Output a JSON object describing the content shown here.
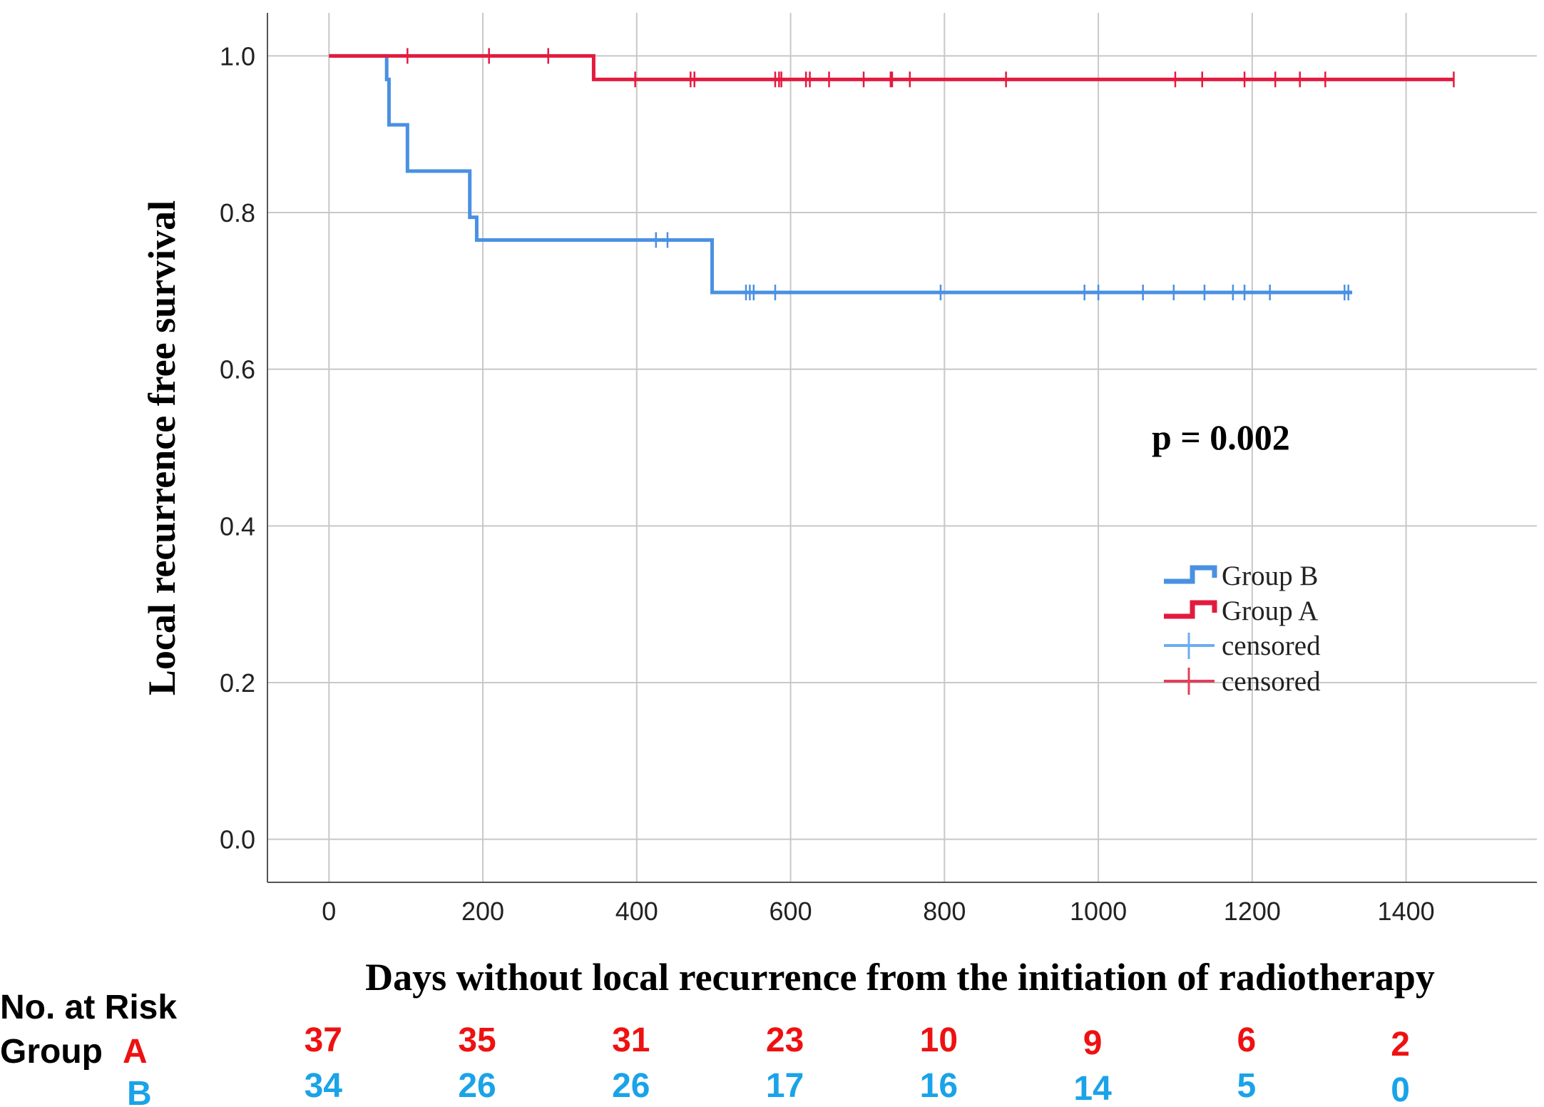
{
  "chart_data": {
    "type": "line",
    "subtype": "kaplan-meier",
    "title": "",
    "xlabel": "Days without local recurrence from the initiation of radiotherapy",
    "ylabel": "Local recurrence free survival",
    "xlim": [
      -80,
      1570
    ],
    "ylim": [
      -0.055,
      1.055
    ],
    "x_ticks": [
      0,
      200,
      400,
      600,
      800,
      1000,
      1200,
      1400
    ],
    "y_ticks": [
      0.0,
      0.2,
      0.4,
      0.6,
      0.8,
      1.0
    ],
    "y_tick_labels": [
      "0.0",
      "0.2",
      "0.4",
      "0.6",
      "0.8",
      "1.0"
    ],
    "grid": true,
    "legend_position": "right-middle",
    "annotation": "p = 0.002",
    "series": [
      {
        "name": "Group B",
        "color": "#4a90e2",
        "steps": [
          [
            0,
            1.0
          ],
          [
            75,
            0.97
          ],
          [
            78,
            0.912
          ],
          [
            102,
            0.853
          ],
          [
            183,
            0.794
          ],
          [
            192,
            0.765
          ],
          [
            498,
            0.698
          ],
          [
            1330,
            0.698
          ]
        ],
        "censored": [
          425,
          440,
          542,
          547,
          552,
          580,
          795,
          982,
          1000,
          1058,
          1098,
          1138,
          1175,
          1190,
          1223,
          1320,
          1325
        ]
      },
      {
        "name": "Group A",
        "color": "#e31a3f",
        "steps": [
          [
            0,
            1.0
          ],
          [
            344,
            0.97
          ],
          [
            1462,
            0.97
          ]
        ],
        "censored": [
          102,
          208,
          285,
          398,
          470,
          475,
          580,
          585,
          588,
          620,
          625,
          650,
          695,
          730,
          732,
          755,
          880,
          1100,
          1135,
          1190,
          1230,
          1262,
          1295,
          1462
        ]
      }
    ],
    "legend": [
      {
        "label": "Group B",
        "kind": "line",
        "color": "#4a90e2"
      },
      {
        "label": "Group A",
        "kind": "line",
        "color": "#e31a3f"
      },
      {
        "label": "censored",
        "kind": "censor",
        "color": "#6aaef0"
      },
      {
        "label": "censored",
        "kind": "censor",
        "color": "#e0405a"
      }
    ]
  },
  "risk_table": {
    "heading": "No. at Risk",
    "group_prefix": "Group",
    "groups": [
      {
        "label": "A",
        "color": "#ee1111",
        "values": [
          "37",
          "35",
          "31",
          "23",
          "10",
          "9",
          "6",
          "2"
        ]
      },
      {
        "label": "B",
        "color": "#1aa3e8",
        "values": [
          "34",
          "26",
          "26",
          "17",
          "16",
          "14",
          "5",
          "0"
        ]
      }
    ]
  }
}
